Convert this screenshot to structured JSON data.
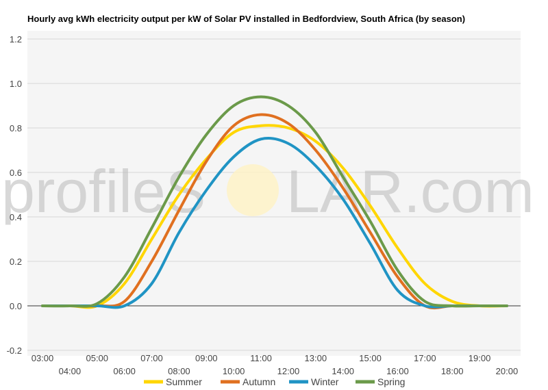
{
  "chart_data": {
    "type": "line",
    "title": "Hourly avg kWh electricity output per kW of Solar PV installed in Bedfordview, South Africa (by season)",
    "xlabel": "",
    "ylabel": "",
    "ylim": [
      -0.2,
      1.2
    ],
    "yticks": [
      "-0.2",
      "0.0",
      "0.2",
      "0.4",
      "0.6",
      "0.8",
      "1.0",
      "1.2"
    ],
    "x": [
      "03:00",
      "04:00",
      "05:00",
      "06:00",
      "07:00",
      "08:00",
      "09:00",
      "10:00",
      "11:00",
      "12:00",
      "13:00",
      "14:00",
      "15:00",
      "16:00",
      "17:00",
      "18:00",
      "19:00",
      "20:00"
    ],
    "grid": true,
    "legend_position": "bottom",
    "series": [
      {
        "name": "Summer",
        "color": "#ffd600",
        "values": [
          0.0,
          0.0,
          0.0,
          0.1,
          0.3,
          0.5,
          0.66,
          0.78,
          0.81,
          0.8,
          0.74,
          0.62,
          0.45,
          0.26,
          0.1,
          0.02,
          0.0,
          0.0
        ]
      },
      {
        "name": "Autumn",
        "color": "#e07020",
        "values": [
          0.0,
          0.0,
          0.0,
          0.02,
          0.2,
          0.43,
          0.65,
          0.81,
          0.86,
          0.82,
          0.7,
          0.53,
          0.33,
          0.13,
          0.0,
          0.0,
          0.0,
          0.0
        ]
      },
      {
        "name": "Winter",
        "color": "#2094c4",
        "values": [
          0.0,
          0.0,
          0.0,
          0.0,
          0.1,
          0.33,
          0.52,
          0.67,
          0.75,
          0.73,
          0.63,
          0.48,
          0.28,
          0.07,
          0.0,
          0.0,
          0.0,
          0.0
        ]
      },
      {
        "name": "Spring",
        "color": "#6b9a4a",
        "values": [
          0.0,
          0.0,
          0.01,
          0.13,
          0.35,
          0.58,
          0.77,
          0.9,
          0.94,
          0.9,
          0.78,
          0.58,
          0.38,
          0.16,
          0.02,
          0.0,
          0.0,
          0.0
        ]
      }
    ]
  },
  "watermark": {
    "text_left": "profileS",
    "text_right": "LAR.com",
    "sun_color": "#fff3c4"
  }
}
